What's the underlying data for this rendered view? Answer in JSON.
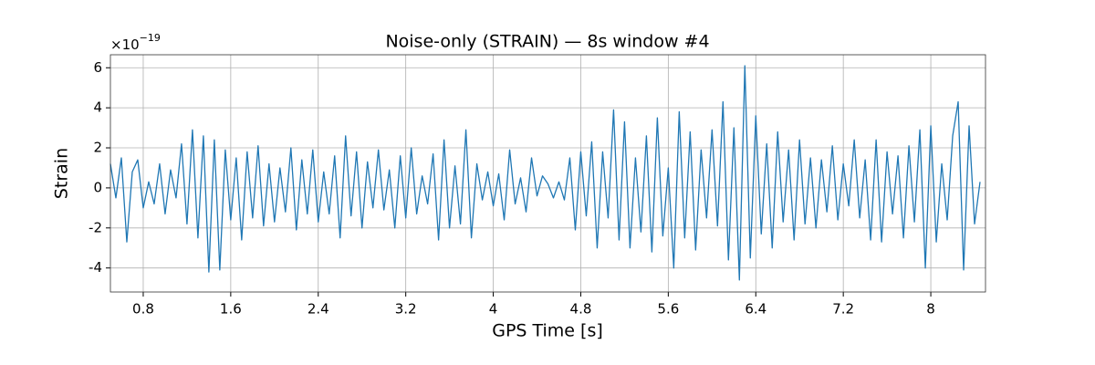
{
  "chart_data": {
    "type": "line",
    "title": "Noise-only (STRAIN) — 8s window #4",
    "x_label": "GPS Time [s]",
    "y_label": "Strain",
    "y_offset_base": "×10",
    "y_offset_exponent": "−19",
    "color": "#1f77b4",
    "grid": true,
    "xlim": [
      0.5,
      8.5
    ],
    "ylim": [
      -5.2,
      6.65
    ],
    "xticks": [
      0.8,
      1.6,
      2.4,
      3.2,
      4,
      4.8,
      5.6,
      6.4,
      7.2,
      8
    ],
    "yticks": [
      -4,
      -2,
      0,
      2,
      4,
      6
    ],
    "x": [
      0.5,
      0.55,
      0.6,
      0.65,
      0.7,
      0.75,
      0.8,
      0.85,
      0.9,
      0.95,
      1.0,
      1.05,
      1.1,
      1.15,
      1.2,
      1.25,
      1.3,
      1.35,
      1.4,
      1.45,
      1.5,
      1.55,
      1.6,
      1.65,
      1.7,
      1.75,
      1.8,
      1.85,
      1.9,
      1.95,
      2.0,
      2.05,
      2.1,
      2.15,
      2.2,
      2.25,
      2.3,
      2.35,
      2.4,
      2.45,
      2.5,
      2.55,
      2.6,
      2.65,
      2.7,
      2.75,
      2.8,
      2.85,
      2.9,
      2.95,
      3.0,
      3.05,
      3.1,
      3.15,
      3.2,
      3.25,
      3.3,
      3.35,
      3.4,
      3.45,
      3.5,
      3.55,
      3.6,
      3.65,
      3.7,
      3.75,
      3.8,
      3.85,
      3.9,
      3.95,
      4.0,
      4.05,
      4.1,
      4.15,
      4.2,
      4.25,
      4.3,
      4.35,
      4.4,
      4.45,
      4.5,
      4.55,
      4.6,
      4.65,
      4.7,
      4.75,
      4.8,
      4.85,
      4.9,
      4.95,
      5.0,
      5.05,
      5.1,
      5.15,
      5.2,
      5.25,
      5.3,
      5.35,
      5.4,
      5.45,
      5.5,
      5.55,
      5.6,
      5.65,
      5.7,
      5.75,
      5.8,
      5.85,
      5.9,
      5.95,
      6.0,
      6.05,
      6.1,
      6.15,
      6.2,
      6.25,
      6.3,
      6.35,
      6.4,
      6.45,
      6.5,
      6.55,
      6.6,
      6.65,
      6.7,
      6.75,
      6.8,
      6.85,
      6.9,
      6.95,
      7.0,
      7.05,
      7.1,
      7.15,
      7.2,
      7.25,
      7.3,
      7.35,
      7.4,
      7.45,
      7.5,
      7.55,
      7.6,
      7.65,
      7.7,
      7.75,
      7.8,
      7.85,
      7.9,
      7.95,
      8.0,
      8.05,
      8.1,
      8.15,
      8.2,
      8.25,
      8.3,
      8.35,
      8.4,
      8.45
    ],
    "values": [
      1.2,
      -0.5,
      1.5,
      -2.7,
      0.8,
      1.4,
      -1.0,
      0.3,
      -0.8,
      1.2,
      -1.3,
      0.9,
      -0.5,
      2.2,
      -1.8,
      2.9,
      -2.5,
      2.6,
      -4.2,
      2.4,
      -4.1,
      1.9,
      -1.6,
      1.5,
      -2.6,
      1.8,
      -1.5,
      2.1,
      -1.9,
      1.2,
      -1.7,
      1.0,
      -1.2,
      2.0,
      -2.1,
      1.4,
      -1.3,
      1.9,
      -1.7,
      0.8,
      -1.3,
      1.6,
      -2.5,
      2.6,
      -1.4,
      1.8,
      -2.0,
      1.3,
      -1.0,
      1.9,
      -1.1,
      0.9,
      -2.0,
      1.6,
      -1.5,
      2.0,
      -1.3,
      0.6,
      -0.8,
      1.7,
      -2.6,
      2.4,
      -2.0,
      1.1,
      -1.8,
      2.9,
      -2.5,
      1.2,
      -0.6,
      0.8,
      -0.9,
      0.7,
      -1.6,
      1.9,
      -0.8,
      0.5,
      -1.2,
      1.5,
      -0.4,
      0.6,
      0.2,
      -0.5,
      0.3,
      -0.6,
      1.5,
      -2.1,
      1.8,
      -1.4,
      2.3,
      -3.0,
      1.8,
      -1.5,
      3.9,
      -2.6,
      3.3,
      -3.0,
      1.5,
      -2.2,
      2.6,
      -3.2,
      3.5,
      -2.4,
      1.0,
      -4.0,
      3.8,
      -2.5,
      2.8,
      -3.1,
      1.9,
      -1.5,
      2.9,
      -1.9,
      4.3,
      -3.6,
      3.0,
      -4.6,
      6.1,
      -3.5,
      3.6,
      -2.3,
      2.2,
      -3.0,
      2.8,
      -1.7,
      1.9,
      -2.6,
      2.4,
      -1.8,
      1.5,
      -2.0,
      1.4,
      -1.2,
      2.1,
      -1.6,
      1.2,
      -0.9,
      2.4,
      -1.5,
      1.4,
      -2.6,
      2.4,
      -2.7,
      1.8,
      -1.3,
      1.6,
      -2.5,
      2.1,
      -1.7,
      2.9,
      -4.0,
      3.1,
      -2.7,
      1.2,
      -1.6,
      2.6,
      4.3,
      -4.1,
      3.1,
      -1.8,
      0.3
    ]
  }
}
